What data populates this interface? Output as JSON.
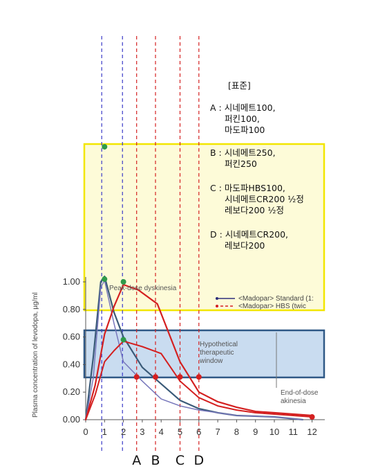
{
  "chart_data": {
    "type": "line",
    "title": "",
    "xlabel": "",
    "ylabel": "Plasma concentration of levodopa, µg/ml",
    "xlim": [
      0,
      12
    ],
    "ylim": [
      0,
      1.0
    ],
    "x_ticks": [
      "0",
      "1",
      "2",
      "3",
      "4",
      "5",
      "6",
      "7",
      "8",
      "9",
      "10",
      "11",
      "12"
    ],
    "y_ticks": [
      "0.00",
      "0.20",
      "0.40",
      "0.60",
      "0.80",
      "1.00"
    ],
    "legend": {
      "placement": "right",
      "entries": [
        {
          "label": "<Madopar> Standard (1:",
          "color": "#2e2e7a",
          "style": "solid"
        },
        {
          "label": "<Madopar> HBS (twic",
          "color": "#d42020",
          "style": "dashed"
        }
      ]
    },
    "annotations": {
      "dyskinesia": "Peak-dose dyskinesia",
      "window_1": "Hypothetical",
      "window_2": "therapeutic",
      "window_3": "window",
      "akinesia_1": "End-of-dose",
      "akinesia_2": "akinesia"
    },
    "therapeutic_window": [
      0.31,
      0.65
    ],
    "series": [
      {
        "name": "",
        "color": "#3a5a78",
        "width": 2.2,
        "x": [
          0,
          0.4,
          0.8,
          1.0,
          1.5,
          2.0,
          3.0,
          4.0,
          5.0,
          6.0,
          7.0,
          8.0,
          10.0,
          11.5
        ],
        "y": [
          0,
          0.45,
          1.0,
          1.04,
          0.78,
          0.6,
          0.38,
          0.26,
          0.14,
          0.08,
          0.05,
          0.03,
          0.02,
          0.0
        ]
      },
      {
        "name": "",
        "color": "#7777bb",
        "width": 1.5,
        "x": [
          0,
          0.4,
          0.8,
          1.0,
          1.5,
          2.0,
          3.0,
          4.0,
          5.0,
          6.0,
          7.0,
          8.0,
          10.0,
          11.5
        ],
        "y": [
          0,
          0.3,
          0.96,
          1.01,
          0.7,
          0.42,
          0.28,
          0.15,
          0.1,
          0.07,
          0.05,
          0.03,
          0.02,
          0.0
        ]
      },
      {
        "name": "",
        "color": "#d42020",
        "width": 2.2,
        "x": [
          0,
          0.5,
          1.0,
          1.5,
          2.0,
          2.8,
          3.8,
          5.0,
          6.0,
          7.0,
          8.0,
          9.0,
          10.0,
          11.0,
          12.0
        ],
        "y": [
          0,
          0.25,
          0.62,
          0.82,
          0.98,
          0.94,
          0.84,
          0.42,
          0.2,
          0.13,
          0.09,
          0.06,
          0.05,
          0.04,
          0.03
        ]
      },
      {
        "name": "",
        "color": "#d42020",
        "width": 2.0,
        "x": [
          0,
          0.5,
          1.0,
          1.5,
          2.0,
          3.0,
          4.0,
          5.0,
          6.0,
          7.0,
          8.0,
          9.0,
          10.0,
          11.0,
          12.0
        ],
        "y": [
          0,
          0.18,
          0.42,
          0.5,
          0.57,
          0.53,
          0.48,
          0.28,
          0.16,
          0.1,
          0.07,
          0.05,
          0.04,
          0.03,
          0.02
        ]
      }
    ],
    "marker_points": [
      {
        "x": 1.0,
        "y": 1.98,
        "color": "#2f9a4a"
      },
      {
        "x": 1.0,
        "y": 1.02,
        "color": "#2f9a4a"
      },
      {
        "x": 2.0,
        "y": 1.0,
        "color": "#2f9a4a"
      },
      {
        "x": 2.0,
        "y": 0.58,
        "color": "#2f9a4a"
      },
      {
        "x": 2.7,
        "y": 0.31,
        "color": "#d42020"
      },
      {
        "x": 3.7,
        "y": 0.31,
        "color": "#d42020"
      },
      {
        "x": 5.0,
        "y": 0.31,
        "color": "#d42020"
      },
      {
        "x": 6.0,
        "y": 0.31,
        "color": "#d42020"
      },
      {
        "x": 12.0,
        "y": 0.02,
        "color": "#d42020"
      }
    ],
    "guide_lines": [
      {
        "x": 0.85,
        "color": "#3a3ac8"
      },
      {
        "x": 1.95,
        "color": "#3a3ac8"
      },
      {
        "x": 2.7,
        "color": "#d42020",
        "letter": "A"
      },
      {
        "x": 3.7,
        "color": "#d42020",
        "letter": "B"
      },
      {
        "x": 5.0,
        "color": "#d42020",
        "letter": "C"
      },
      {
        "x": 6.0,
        "color": "#d42020",
        "letter": "D"
      }
    ]
  },
  "legend_box": {
    "title": "[표준]",
    "groups": [
      {
        "lines": [
          "A : 시네메트100,",
          "퍼킨100,",
          "마도파100"
        ]
      },
      {
        "lines": [
          "B : 시네메트250,",
          "퍼킨250"
        ]
      },
      {
        "lines": [
          "C : 마도파HBS100,",
          "시네메트CR200 ½정",
          "레보다200 ½정"
        ]
      },
      {
        "lines": [
          "D : 시네메트CR200,",
          "레보다200"
        ]
      }
    ]
  },
  "colors": {
    "highlight_fill": "#fdfbd8",
    "highlight_border": "#f2e600",
    "window_fill": "#c9dcf0",
    "window_border": "#2e5886"
  }
}
